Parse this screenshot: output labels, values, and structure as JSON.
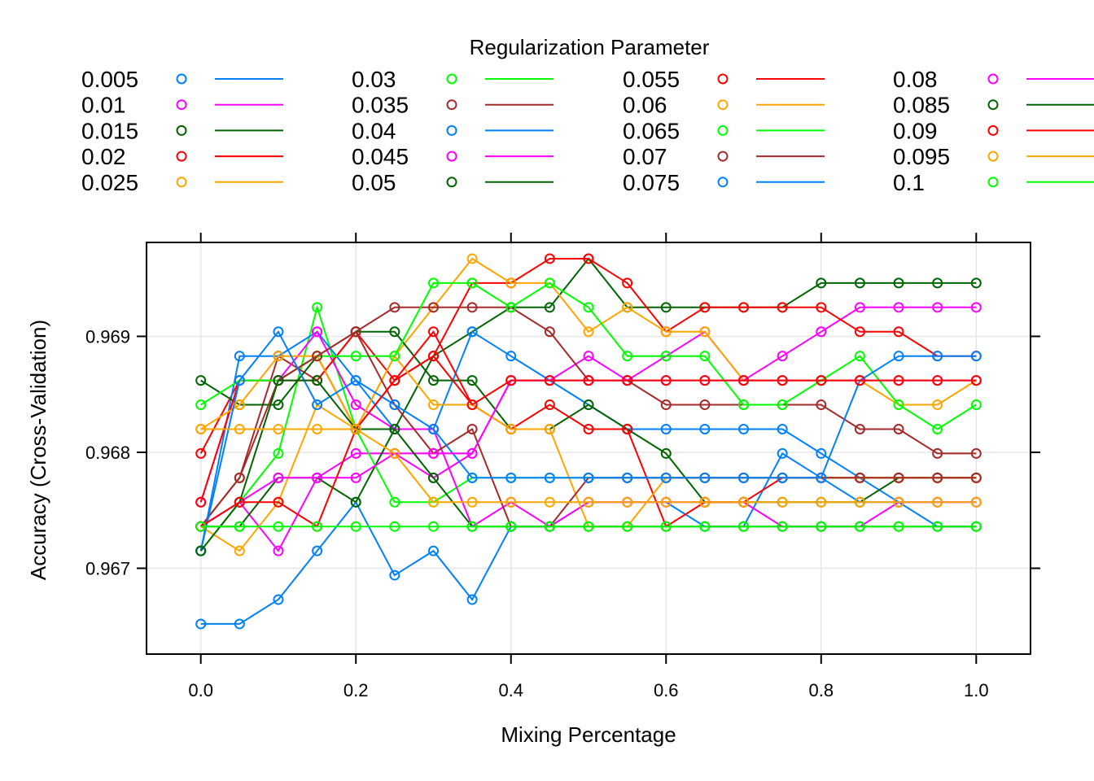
{
  "chart_data": {
    "type": "line",
    "xlabel": "Mixing Percentage",
    "ylabel": "Accuracy (Cross-Validation)",
    "legend_title": "Regularization Parameter",
    "legend_placement": "top",
    "grid": true,
    "xlim": [
      -0.07,
      1.07
    ],
    "ylim": [
      0.96626,
      0.96981
    ],
    "x_ticks": [
      "0.0",
      "0.2",
      "0.4",
      "0.6",
      "0.8",
      "1.0"
    ],
    "x_tick_values": [
      0,
      0.2,
      0.4,
      0.6,
      0.8,
      1.0
    ],
    "y_ticks": [
      "0.967",
      "0.968",
      "0.969"
    ],
    "y_tick_values": [
      0.967,
      0.968,
      0.969
    ],
    "x": [
      0,
      0.05,
      0.1,
      0.15,
      0.2,
      0.25,
      0.3,
      0.35,
      0.4,
      0.45,
      0.5,
      0.55,
      0.6,
      0.65,
      0.7,
      0.75,
      0.8,
      0.85,
      0.9,
      0.95,
      1.0
    ],
    "series": [
      {
        "name": "0.005",
        "color": "#0080ff",
        "values": [
          0.96652,
          0.96652,
          0.96673,
          0.96715,
          0.96757,
          0.96694,
          0.96715,
          0.96673,
          0.96736,
          0.96736,
          0.96757,
          0.96757,
          0.96757,
          0.96736,
          0.96736,
          0.96799,
          0.96778,
          0.96757,
          0.96757,
          0.96736,
          0.96736
        ]
      },
      {
        "name": "0.01",
        "color": "#ff00ff",
        "values": [
          0.96736,
          0.96757,
          0.96715,
          0.96778,
          0.96799,
          0.96799,
          0.96778,
          0.96799,
          0.96862,
          0.96862,
          0.96883,
          0.96862,
          0.96883,
          0.96904,
          0.96862,
          0.96883,
          0.96904,
          0.96925,
          0.96925,
          0.96925,
          0.96925
        ]
      },
      {
        "name": "0.015",
        "color": "#006400",
        "values": [
          0.96736,
          0.96736,
          0.96778,
          0.96778,
          0.96757,
          0.9682,
          0.96883,
          0.96904,
          0.96925,
          0.96925,
          0.96967,
          0.96925,
          0.96925,
          0.96925,
          0.96925,
          0.96925,
          0.96946,
          0.96946,
          0.96946,
          0.96946,
          0.96946
        ]
      },
      {
        "name": "0.02",
        "color": "#ff0000",
        "values": [
          0.96799,
          0.96862,
          0.96862,
          0.96883,
          0.9682,
          0.96862,
          0.96883,
          0.96946,
          0.96946,
          0.96967,
          0.96967,
          0.96946,
          0.96904,
          0.96925,
          0.96925,
          0.96925,
          0.96925,
          0.96904,
          0.96904,
          0.96883,
          0.96883
        ]
      },
      {
        "name": "0.025",
        "color": "#ffa500",
        "values": [
          0.96736,
          0.96715,
          0.96757,
          0.96841,
          0.9682,
          0.96883,
          0.96925,
          0.96967,
          0.96946,
          0.96946,
          0.96904,
          0.96925,
          0.96904,
          0.96904,
          0.96862,
          0.96862,
          0.96862,
          0.96862,
          0.96841,
          0.96841,
          0.96862
        ]
      },
      {
        "name": "0.03",
        "color": "#00ff00",
        "values": [
          0.96715,
          0.96757,
          0.96799,
          0.96925,
          0.9682,
          0.96757,
          0.96757,
          0.96778,
          0.96778,
          0.96778,
          0.96778,
          0.96778,
          0.96778,
          0.96778,
          0.96778,
          0.96778,
          0.96778,
          0.96778,
          0.96778,
          0.96778,
          0.96778
        ]
      },
      {
        "name": "0.035",
        "color": "#a52a2a",
        "values": [
          0.96736,
          0.96778,
          0.96883,
          0.96862,
          0.96904,
          0.96925,
          0.96925,
          0.96925,
          0.96925,
          0.96904,
          0.96862,
          0.96862,
          0.96841,
          0.96841,
          0.96841,
          0.96841,
          0.96841,
          0.9682,
          0.9682,
          0.96799,
          0.96799
        ]
      },
      {
        "name": "0.04",
        "color": "#0080ff",
        "values": [
          0.96715,
          0.96883,
          0.96883,
          0.96904,
          0.96862,
          0.9682,
          0.9682,
          0.96904,
          0.96883,
          0.96862,
          0.96841,
          0.9682,
          0.9682,
          0.9682,
          0.9682,
          0.9682,
          0.96799,
          0.96778,
          0.96757,
          0.96757,
          0.96757
        ]
      },
      {
        "name": "0.045",
        "color": "#ff00ff",
        "values": [
          0.96757,
          0.96862,
          0.96862,
          0.96904,
          0.96841,
          0.9682,
          0.9682,
          0.96736,
          0.96757,
          0.96736,
          0.96757,
          0.96757,
          0.96757,
          0.96757,
          0.96757,
          0.96736,
          0.96736,
          0.96736,
          0.96757,
          0.96757,
          0.96757
        ]
      },
      {
        "name": "0.05",
        "color": "#006400",
        "values": [
          0.96862,
          0.96841,
          0.96841,
          0.96883,
          0.96904,
          0.96904,
          0.96862,
          0.96862,
          0.9682,
          0.9682,
          0.96841,
          0.9682,
          0.96799,
          0.96757,
          0.96757,
          0.96757,
          0.96757,
          0.96757,
          0.96778,
          0.96778,
          0.96778
        ]
      },
      {
        "name": "0.055",
        "color": "#ff0000",
        "values": [
          0.96757,
          0.96862,
          0.96862,
          0.96862,
          0.96904,
          0.96862,
          0.96883,
          0.96841,
          0.9682,
          0.96841,
          0.9682,
          0.9682,
          0.96736,
          0.96757,
          0.96757,
          0.96778,
          0.96778,
          0.96778,
          0.96778,
          0.96778,
          0.96778
        ]
      },
      {
        "name": "0.06",
        "color": "#ffa500",
        "values": [
          0.9682,
          0.96841,
          0.96883,
          0.96883,
          0.9682,
          0.96883,
          0.96841,
          0.96841,
          0.9682,
          0.9682,
          0.96736,
          0.96736,
          0.96778,
          0.96778,
          0.96778,
          0.96778,
          0.96778,
          0.96778,
          0.96778,
          0.96778,
          0.96778
        ]
      },
      {
        "name": "0.065",
        "color": "#00ff00",
        "values": [
          0.96841,
          0.96862,
          0.96862,
          0.96883,
          0.96883,
          0.96883,
          0.96946,
          0.96946,
          0.96925,
          0.96946,
          0.96925,
          0.96883,
          0.96883,
          0.96883,
          0.96841,
          0.96841,
          0.96862,
          0.96883,
          0.96841,
          0.9682,
          0.96841
        ]
      },
      {
        "name": "0.07",
        "color": "#a52a2a",
        "values": [
          0.96736,
          0.96778,
          0.96862,
          0.96883,
          0.96904,
          0.96841,
          0.96799,
          0.9682,
          0.96736,
          0.96736,
          0.96778,
          0.96778,
          0.96778,
          0.96778,
          0.96778,
          0.96778,
          0.96778,
          0.96778,
          0.96778,
          0.96778,
          0.96778
        ]
      },
      {
        "name": "0.075",
        "color": "#0080ff",
        "values": [
          0.96715,
          0.96862,
          0.96904,
          0.96841,
          0.96862,
          0.96841,
          0.9682,
          0.96778,
          0.96778,
          0.96778,
          0.96778,
          0.96778,
          0.96778,
          0.96778,
          0.96778,
          0.96778,
          0.96778,
          0.96862,
          0.96883,
          0.96883,
          0.96883
        ]
      },
      {
        "name": "0.08",
        "color": "#ff00ff",
        "values": [
          0.96736,
          0.96757,
          0.96778,
          0.96778,
          0.96778,
          0.96799,
          0.96799,
          0.96799,
          0.96862,
          0.96862,
          0.96862,
          0.96862,
          0.96862,
          0.96862,
          0.96862,
          0.96862,
          0.96862,
          0.96862,
          0.96862,
          0.96862,
          0.96862
        ]
      },
      {
        "name": "0.085",
        "color": "#006400",
        "values": [
          0.96715,
          0.96757,
          0.96862,
          0.96862,
          0.9682,
          0.9682,
          0.96778,
          0.96736,
          0.96736,
          0.96736,
          0.96736,
          0.96736,
          0.96736,
          0.96736,
          0.96736,
          0.96736,
          0.96736,
          0.96736,
          0.96736,
          0.96736,
          0.96736
        ]
      },
      {
        "name": "0.09",
        "color": "#ff0000",
        "values": [
          0.96736,
          0.96757,
          0.96757,
          0.96736,
          0.9682,
          0.96862,
          0.96904,
          0.96841,
          0.96862,
          0.96862,
          0.96862,
          0.96862,
          0.96862,
          0.96862,
          0.96862,
          0.96862,
          0.96862,
          0.96862,
          0.96862,
          0.96862,
          0.96862
        ]
      },
      {
        "name": "0.095",
        "color": "#ffa500",
        "values": [
          0.9682,
          0.9682,
          0.9682,
          0.9682,
          0.9682,
          0.96799,
          0.96757,
          0.96757,
          0.96757,
          0.96757,
          0.96757,
          0.96757,
          0.96757,
          0.96757,
          0.96757,
          0.96757,
          0.96757,
          0.96757,
          0.96757,
          0.96757,
          0.96757
        ]
      },
      {
        "name": "0.1",
        "color": "#00ff00",
        "values": [
          0.96736,
          0.96736,
          0.96736,
          0.96736,
          0.96736,
          0.96736,
          0.96736,
          0.96736,
          0.96736,
          0.96736,
          0.96736,
          0.96736,
          0.96736,
          0.96736,
          0.96736,
          0.96736,
          0.96736,
          0.96736,
          0.96736,
          0.96736,
          0.96736
        ]
      }
    ]
  }
}
